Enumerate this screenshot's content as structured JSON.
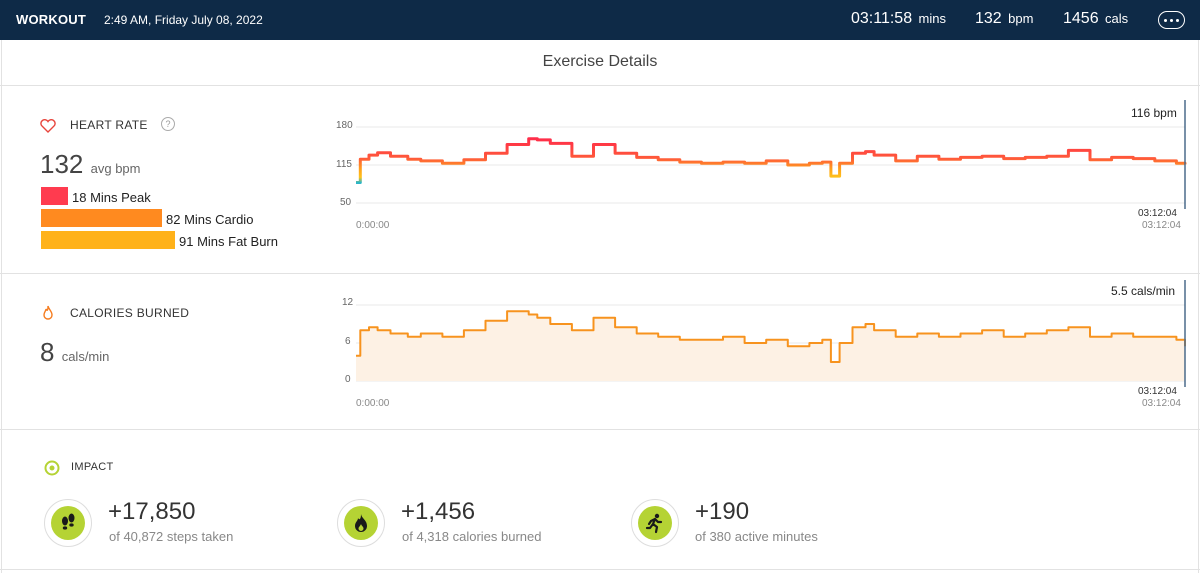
{
  "header": {
    "mode": "WORKOUT",
    "datetime": "2:49 AM, Friday July 08, 2022",
    "duration": "03:11:58",
    "duration_unit": "mins",
    "bpm": "132",
    "bpm_unit": "bpm",
    "cals": "1456",
    "cals_unit": "cals"
  },
  "page_title": "Exercise Details",
  "heart_rate": {
    "label": "HEART RATE",
    "help": "?",
    "avg_value": "132",
    "avg_unit": "avg bpm",
    "zones": [
      {
        "label": "18 Mins Peak",
        "minutes": 18,
        "color": "#ff3b4f"
      },
      {
        "label": "82 Mins Cardio",
        "minutes": 82,
        "color": "#ff8a1f"
      },
      {
        "label": "91 Mins Fat Burn",
        "minutes": 91,
        "color": "#ffb21a"
      }
    ],
    "y_ticks": [
      "180",
      "115",
      "50"
    ],
    "start_time": "0:00:00",
    "end_time": "03:12:04",
    "end_time_gray": "03:12:04",
    "current_value": "116 bpm"
  },
  "calories": {
    "label": "CALORIES BURNED",
    "rate_value": "8",
    "rate_unit": "cals/min",
    "y_ticks": [
      "12",
      "6",
      "0"
    ],
    "start_time": "0:00:00",
    "end_time": "03:12:04",
    "end_time_gray": "03:12:04",
    "current_value": "5.5 cals/min"
  },
  "impact": {
    "label": "IMPACT",
    "items": [
      {
        "value": "+17,850",
        "sub": "of 40,872 steps taken",
        "icon": "footsteps-icon"
      },
      {
        "value": "+1,456",
        "sub": "of 4,318 calories burned",
        "icon": "flame-icon"
      },
      {
        "value": "+190",
        "sub": "of 380 active minutes",
        "icon": "runner-icon"
      }
    ]
  },
  "colors": {
    "header_bg": "#0e2a47",
    "peak": "#ff3b4f",
    "cardio": "#ff8a1f",
    "fatburn": "#ffb21a",
    "calories_line": "#f7931e",
    "impact_green": "#b5d334"
  },
  "chart_data": [
    {
      "type": "line",
      "title": "HEART RATE",
      "ylabel": "bpm",
      "ylim": [
        50,
        180
      ],
      "y_ticks": [
        180,
        115,
        50
      ],
      "x_range": [
        "0:00:00",
        "03:12:04"
      ],
      "x_minutes": [
        0,
        1,
        3,
        5,
        8,
        12,
        15,
        20,
        25,
        30,
        35,
        40,
        42,
        45,
        50,
        55,
        60,
        65,
        70,
        75,
        80,
        85,
        90,
        95,
        100,
        105,
        108,
        110,
        112,
        115,
        118,
        120,
        125,
        130,
        135,
        140,
        145,
        150,
        155,
        160,
        165,
        170,
        175,
        180,
        185,
        190,
        192
      ],
      "values": [
        85,
        125,
        132,
        136,
        130,
        125,
        122,
        118,
        124,
        135,
        150,
        160,
        158,
        152,
        130,
        150,
        135,
        128,
        124,
        120,
        118,
        120,
        118,
        122,
        115,
        118,
        120,
        96,
        118,
        135,
        138,
        132,
        122,
        130,
        125,
        128,
        130,
        126,
        128,
        130,
        140,
        124,
        128,
        126,
        122,
        118,
        116
      ],
      "grid": true
    },
    {
      "type": "area",
      "title": "CALORIES BURNED",
      "ylabel": "cals/min",
      "ylim": [
        0,
        12
      ],
      "y_ticks": [
        12,
        6,
        0
      ],
      "x_range": [
        "0:00:00",
        "03:12:04"
      ],
      "x_minutes": [
        0,
        1,
        3,
        5,
        8,
        12,
        15,
        20,
        25,
        30,
        35,
        40,
        42,
        45,
        50,
        55,
        60,
        65,
        70,
        75,
        80,
        85,
        90,
        95,
        100,
        105,
        108,
        110,
        112,
        115,
        118,
        120,
        125,
        130,
        135,
        140,
        145,
        150,
        155,
        160,
        165,
        170,
        175,
        180,
        185,
        190,
        192
      ],
      "values": [
        4.0,
        8.0,
        8.5,
        8.0,
        7.5,
        7.0,
        7.5,
        7.0,
        8.0,
        9.5,
        11.0,
        10.5,
        10.0,
        9.0,
        8.0,
        10.0,
        8.5,
        7.5,
        7.0,
        6.5,
        6.5,
        7.0,
        6.0,
        6.5,
        5.5,
        6.0,
        6.5,
        3.0,
        6.0,
        8.5,
        9.0,
        8.0,
        7.0,
        7.5,
        7.0,
        7.5,
        8.0,
        7.0,
        7.5,
        8.0,
        8.5,
        7.0,
        7.5,
        7.0,
        7.0,
        6.5,
        5.5
      ],
      "grid": true
    }
  ]
}
